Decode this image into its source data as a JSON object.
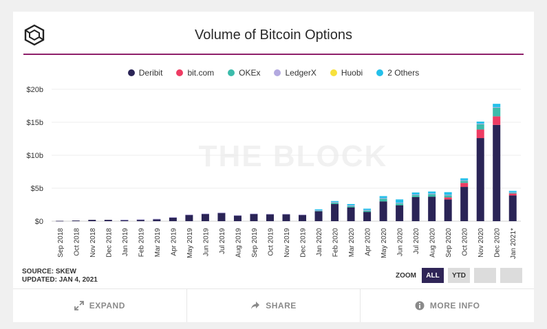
{
  "title": "Volume of Bitcoin Options",
  "watermark": "THE BLOCK",
  "source_text": "SOURCE: SKEW",
  "updated_text": "UPDATED: JAN 4, 2021",
  "zoom": {
    "label": "ZOOM",
    "buttons": [
      "ALL",
      "YTD",
      "",
      ""
    ],
    "active": "ALL"
  },
  "footer": {
    "expand": "EXPAND",
    "share": "SHARE",
    "more_info": "MORE INFO"
  },
  "icons": {
    "logo": "the-block-logo-icon",
    "expand": "expand-arrows-icon",
    "share": "share-arrow-icon",
    "info": "info-icon"
  },
  "chart_data": {
    "type": "bar",
    "stacked": true,
    "title": "Volume of Bitcoin Options",
    "categories": [
      "Sep 2018",
      "Oct 2018",
      "Nov 2018",
      "Dec 2018",
      "Jan 2019",
      "Feb 2019",
      "Mar 2019",
      "Apr 2019",
      "May 2019",
      "Jun 2019",
      "Jul 2019",
      "Aug 2019",
      "Sep 2019",
      "Oct 2019",
      "Nov 2019",
      "Dec 2019",
      "Jan 2020",
      "Feb 2020",
      "Mar 2020",
      "Apr 2020",
      "May 2020",
      "Jun 2020",
      "Jul 2020",
      "Aug 2020",
      "Sep 2020",
      "Oct 2020",
      "Nov 2020",
      "Dec 2020",
      "Jan 2021*"
    ],
    "series": [
      {
        "name": "Deribit",
        "color": "#2a2456",
        "values": [
          0.05,
          0.1,
          0.2,
          0.2,
          0.2,
          0.25,
          0.3,
          0.55,
          0.95,
          1.1,
          1.25,
          0.85,
          1.1,
          1.05,
          1.05,
          0.95,
          1.5,
          2.6,
          2.1,
          1.4,
          3.0,
          2.4,
          3.65,
          3.7,
          3.3,
          5.2,
          12.6,
          14.6,
          3.9
        ]
      },
      {
        "name": "bit.com",
        "color": "#ee3c63",
        "values": [
          0,
          0,
          0,
          0,
          0,
          0,
          0,
          0,
          0,
          0,
          0,
          0,
          0,
          0,
          0,
          0,
          0,
          0,
          0,
          0,
          0,
          0,
          0,
          0,
          0.3,
          0.6,
          1.3,
          1.3,
          0.3
        ]
      },
      {
        "name": "OKEx",
        "color": "#3cbcab",
        "values": [
          0,
          0,
          0,
          0,
          0,
          0,
          0,
          0,
          0,
          0,
          0,
          0,
          0,
          0,
          0,
          0,
          0.1,
          0.2,
          0.2,
          0.2,
          0.4,
          0.3,
          0.3,
          0.4,
          0.3,
          0.3,
          0.8,
          1.3,
          0.15
        ]
      },
      {
        "name": "LedgerX",
        "color": "#b3a9e0",
        "values": [
          0,
          0,
          0,
          0,
          0.02,
          0.02,
          0.05,
          0.05,
          0.05,
          0.05,
          0.05,
          0.05,
          0.05,
          0.05,
          0.05,
          0.05,
          0.05,
          0.1,
          0.1,
          0.1,
          0.1,
          0.1,
          0.1,
          0.1,
          0.1,
          0.1,
          0.1,
          0.1,
          0.05
        ]
      },
      {
        "name": "Huobi",
        "color": "#f7e13c",
        "values": [
          0,
          0,
          0,
          0,
          0,
          0,
          0,
          0,
          0,
          0,
          0,
          0,
          0,
          0,
          0,
          0,
          0,
          0,
          0,
          0,
          0,
          0,
          0,
          0,
          0,
          0,
          0,
          0,
          0
        ]
      },
      {
        "name": "2 Others",
        "color": "#24c0ea",
        "values": [
          0,
          0,
          0,
          0,
          0,
          0,
          0,
          0,
          0,
          0,
          0,
          0,
          0,
          0,
          0,
          0,
          0.15,
          0.15,
          0.2,
          0.2,
          0.3,
          0.5,
          0.3,
          0.3,
          0.4,
          0.3,
          0.3,
          0.5,
          0.2
        ]
      }
    ],
    "ylim": [
      0,
      20
    ],
    "yticks": [
      {
        "value": 0,
        "label": "$0"
      },
      {
        "value": 5,
        "label": "$5b"
      },
      {
        "value": 10,
        "label": "$10b"
      },
      {
        "value": 15,
        "label": "$15b"
      },
      {
        "value": 20,
        "label": "$20b"
      }
    ],
    "legend_position": "top-center",
    "grid": true
  }
}
